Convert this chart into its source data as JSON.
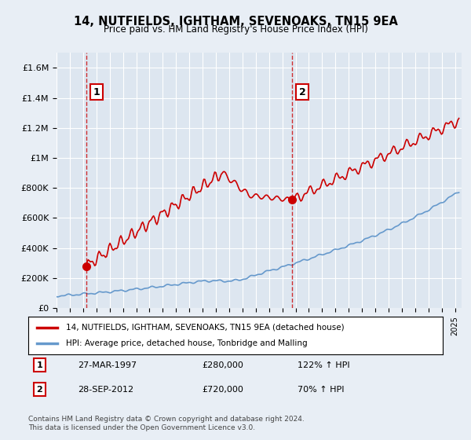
{
  "title": "14, NUTFIELDS, IGHTHAM, SEVENOAKS, TN15 9EA",
  "subtitle": "Price paid vs. HM Land Registry's House Price Index (HPI)",
  "ylabel": "",
  "ylim": [
    0,
    1700000
  ],
  "yticks": [
    0,
    200000,
    400000,
    600000,
    800000,
    1000000,
    1200000,
    1400000,
    1600000
  ],
  "ytick_labels": [
    "£0",
    "£200K",
    "£400K",
    "£600K",
    "£800K",
    "£1M",
    "£1.2M",
    "£1.4M",
    "£1.6M"
  ],
  "sale1_date_num": 1997.24,
  "sale1_price": 280000,
  "sale1_label": "1",
  "sale2_date_num": 2012.75,
  "sale2_price": 720000,
  "sale2_label": "2",
  "line1_color": "#cc0000",
  "line2_color": "#6699cc",
  "vline_color": "#cc0000",
  "background_color": "#e8eef5",
  "plot_bg_color": "#dde6f0",
  "legend_label1": "14, NUTFIELDS, IGHTHAM, SEVENOAKS, TN15 9EA (detached house)",
  "legend_label2": "HPI: Average price, detached house, Tonbridge and Malling",
  "annotation1_text": "27-MAR-1997     £280,000     122% ↑ HPI",
  "annotation2_text": "28-SEP-2012     £720,000     70% ↑ HPI",
  "footer": "Contains HM Land Registry data © Crown copyright and database right 2024.\nThis data is licensed under the Open Government Licence v3.0.",
  "xmin": 1995.0,
  "xmax": 2025.5
}
